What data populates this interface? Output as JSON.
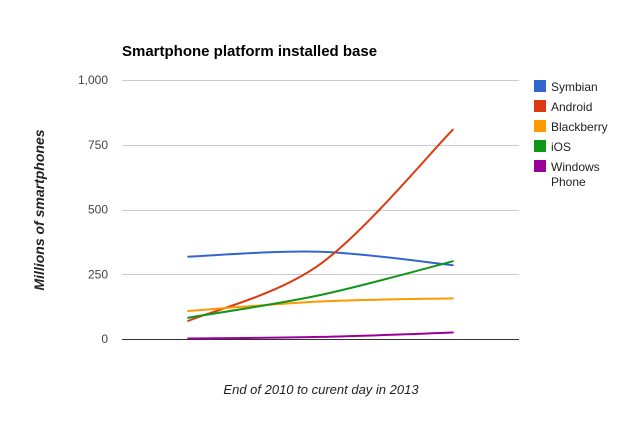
{
  "chart_data": {
    "type": "line",
    "title": "Smartphone platform installed base",
    "xlabel": "End of 2010 to curent day in 2013",
    "ylabel": "Millions of smartphones",
    "ylim": [
      0,
      1000
    ],
    "yticks": [
      0,
      250,
      500,
      750,
      1000
    ],
    "ytick_labels": [
      "0",
      "250",
      "500",
      "750",
      "1,000"
    ],
    "x": [
      0,
      1,
      2
    ],
    "xlim": [
      -0.5,
      2.5
    ],
    "grid": true,
    "legend_position": "right",
    "curve": "smooth",
    "series": [
      {
        "name": "Symbian",
        "color": "#3366cc",
        "values": [
          318,
          337,
          285
        ]
      },
      {
        "name": "Android",
        "color": "#dc3912",
        "values": [
          70,
          290,
          808
        ]
      },
      {
        "name": "Blackberry",
        "color": "#ff9900",
        "values": [
          108,
          145,
          157
        ]
      },
      {
        "name": "iOS",
        "color": "#109618",
        "values": [
          82,
          170,
          300
        ]
      },
      {
        "name": "Windows Phone",
        "color": "#990099",
        "values": [
          2,
          8,
          25
        ]
      }
    ]
  }
}
